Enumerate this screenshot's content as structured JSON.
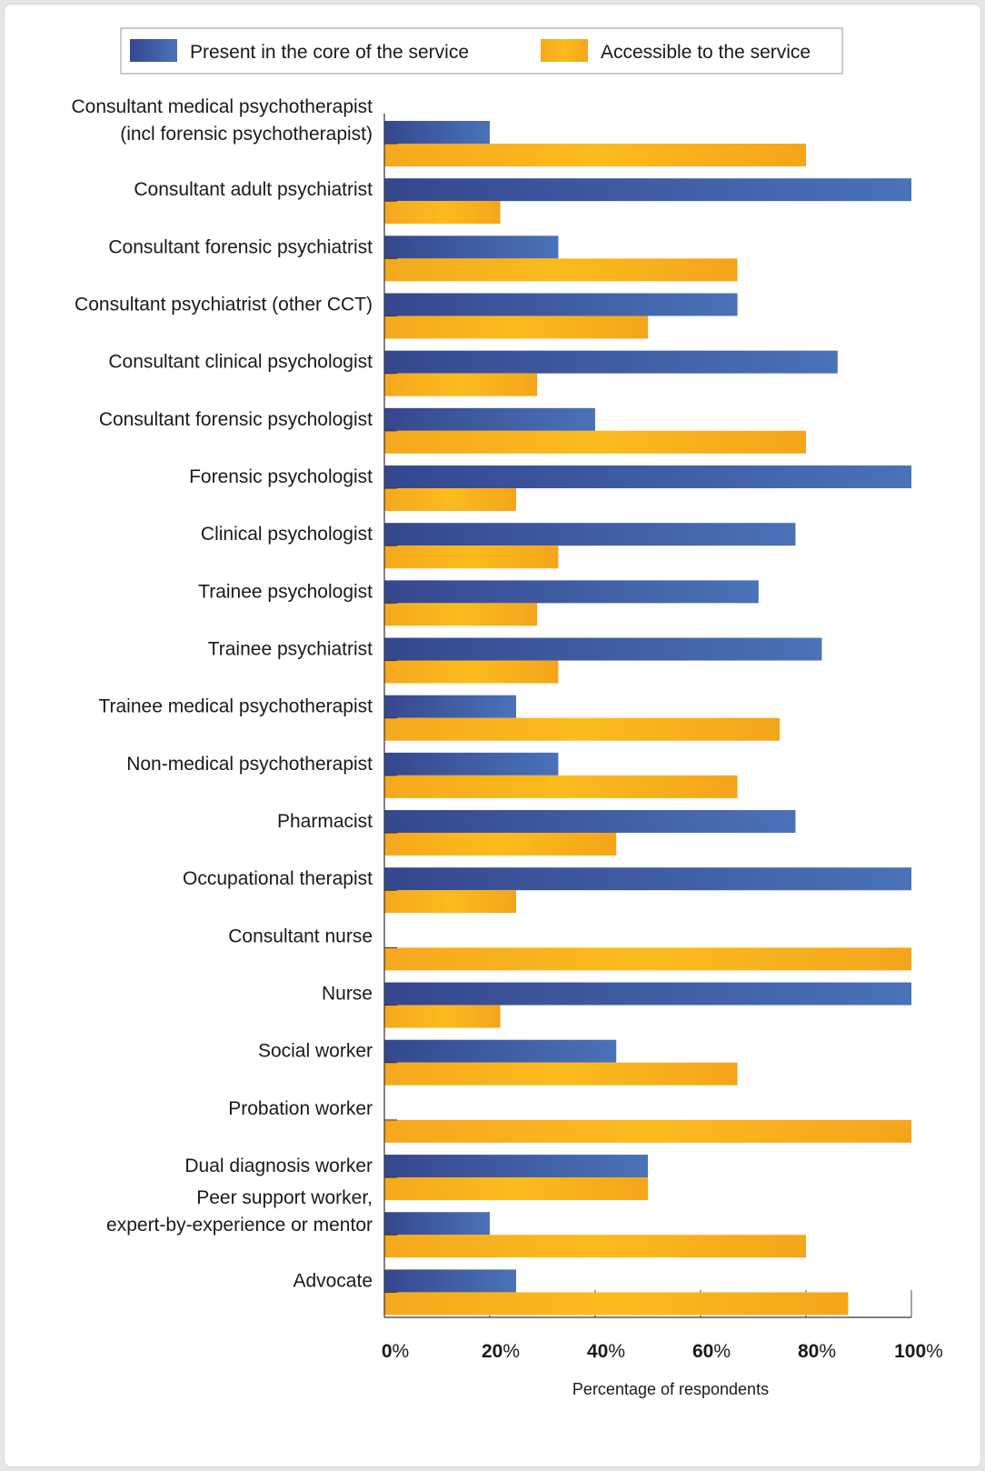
{
  "chart_data": {
    "type": "bar",
    "orientation": "horizontal",
    "categories": [
      [
        "Consultant medical psychotherapist",
        "(incl forensic psychotherapist)"
      ],
      [
        "Consultant adult psychiatrist"
      ],
      [
        "Consultant forensic psychiatrist"
      ],
      [
        "Consultant psychiatrist (other CCT)"
      ],
      [
        "Consultant clinical psychologist"
      ],
      [
        "Consultant forensic psychologist"
      ],
      [
        "Forensic psychologist"
      ],
      [
        "Clinical psychologist"
      ],
      [
        "Trainee psychologist"
      ],
      [
        "Trainee psychiatrist"
      ],
      [
        "Trainee medical psychotherapist"
      ],
      [
        "Non-medical psychotherapist"
      ],
      [
        "Pharmacist"
      ],
      [
        "Occupational therapist"
      ],
      [
        "Consultant nurse"
      ],
      [
        "Nurse"
      ],
      [
        "Social worker"
      ],
      [
        "Probation worker"
      ],
      [
        "Dual diagnosis worker"
      ],
      [
        "Peer support worker,",
        "expert-by-experience or mentor"
      ],
      [
        "Advocate"
      ]
    ],
    "series": [
      {
        "name": "Present in the core of the service",
        "color": "#3d55a0",
        "values": [
          20,
          100,
          33,
          67,
          86,
          40,
          100,
          78,
          71,
          83,
          25,
          33,
          78,
          100,
          0,
          100,
          44,
          0,
          50,
          20,
          25
        ]
      },
      {
        "name": "Accessible to the service",
        "color": "#f7b21c",
        "values": [
          80,
          22,
          67,
          50,
          29,
          80,
          25,
          33,
          29,
          33,
          75,
          67,
          44,
          25,
          100,
          22,
          67,
          100,
          50,
          80,
          88
        ]
      }
    ],
    "xlabel": "Percentage of respondents",
    "xlim": [
      0,
      100
    ],
    "xticks": [
      {
        "num": "0",
        "unit": "%"
      },
      {
        "num": "20",
        "unit": "%"
      },
      {
        "num": "40",
        "unit": "%"
      },
      {
        "num": "60",
        "unit": "%"
      },
      {
        "num": "80",
        "unit": "%"
      },
      {
        "num": "100",
        "unit": "%"
      }
    ],
    "legend_position": "top"
  }
}
